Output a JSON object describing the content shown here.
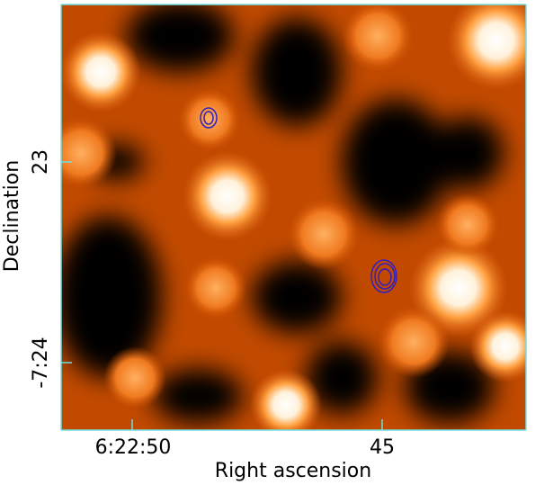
{
  "x_axis": {
    "label": "Right ascension",
    "ticks": [
      "6:22:50",
      "45"
    ]
  },
  "y_axis": {
    "label": "Declination",
    "ticks": [
      "23",
      "-7:24"
    ]
  }
}
